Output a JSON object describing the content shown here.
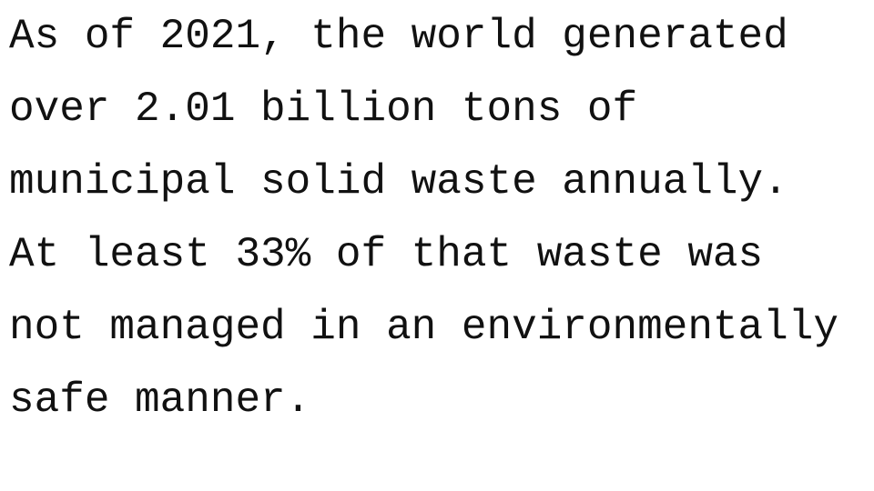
{
  "document": {
    "lines": [
      "As of 2021, the world generated",
      "over 2.01 billion tons of",
      "municipal solid waste annually.",
      "At least 33% of that waste was",
      "not managed in an environmentally",
      "safe manner."
    ]
  }
}
